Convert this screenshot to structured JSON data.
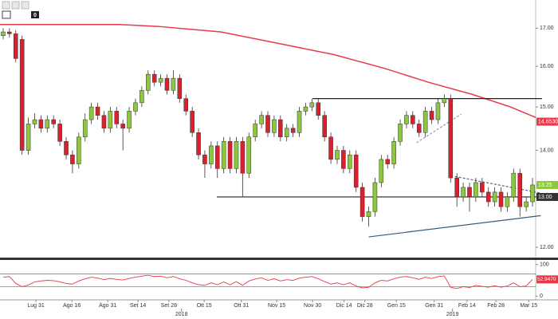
{
  "toolbar": {
    "badge": "0"
  },
  "chart_data": {
    "type": "candlestick",
    "log_scale": true,
    "ylim": [
      11.82,
      17.78
    ],
    "yticks": [
      {
        "value": 12,
        "label": "12.00"
      },
      {
        "value": 13,
        "label": "13.00"
      },
      {
        "value": 14,
        "label": "14.00"
      },
      {
        "value": 15,
        "label": "15.00"
      },
      {
        "value": 16,
        "label": "16.00"
      },
      {
        "value": 17,
        "label": "17.00"
      }
    ],
    "xlim": [
      0,
      85
    ],
    "xticks": [
      {
        "value": 5.7,
        "label": "Lug 31"
      },
      {
        "value": 11.4,
        "label": "Ago 16"
      },
      {
        "value": 17.1,
        "label": "Ago 31"
      },
      {
        "value": 21.9,
        "label": "Set 14"
      },
      {
        "value": 26.8,
        "label": "Set 28"
      },
      {
        "value": 32.4,
        "label": "Ott 15"
      },
      {
        "value": 38.3,
        "label": "Ott 31"
      },
      {
        "value": 43.9,
        "label": "Nov 15"
      },
      {
        "value": 49.6,
        "label": "Nov 30"
      },
      {
        "value": 54.6,
        "label": "Dic 14"
      },
      {
        "value": 57.9,
        "label": "Dic 28"
      },
      {
        "value": 62.9,
        "label": "Gen 15"
      },
      {
        "value": 68.9,
        "label": "Gen 31"
      },
      {
        "value": 74.1,
        "label": "Feb 14"
      },
      {
        "value": 78.7,
        "label": "Feb 28"
      },
      {
        "value": 83.9,
        "label": "Mar 15"
      }
    ],
    "year_labels": [
      {
        "value": 28.8,
        "label": "2018"
      },
      {
        "value": 71.8,
        "label": "2019"
      }
    ],
    "up_color": "#8dc63f",
    "down_color": "#d9202f",
    "open": [
      16.8,
      16.9,
      16.85,
      16.7,
      14.0,
      14.6,
      14.7,
      14.5,
      14.7,
      14.6,
      14.2,
      13.9,
      13.7,
      14.3,
      14.7,
      15.0,
      14.8,
      14.5,
      14.9,
      14.6,
      14.5,
      14.9,
      15.1,
      15.4,
      15.8,
      15.6,
      15.7,
      15.4,
      15.7,
      15.2,
      14.9,
      14.4,
      13.9,
      13.7,
      14.1,
      13.6,
      14.2,
      13.6,
      14.2,
      13.5,
      14.3,
      14.6,
      14.8,
      14.4,
      14.7,
      14.3,
      14.5,
      14.4,
      14.9,
      15.0,
      15.1,
      14.8,
      14.3,
      13.8,
      14.0,
      13.6,
      13.9,
      13.2,
      12.6,
      12.7,
      13.3,
      13.8,
      13.7,
      14.2,
      14.6,
      14.8,
      14.6,
      14.4,
      14.9,
      14.7,
      15.1,
      15.2,
      13.4,
      13.0,
      13.2,
      13.0,
      13.3,
      13.1,
      12.9,
      13.1,
      12.8,
      13.0,
      13.5,
      12.8,
      12.9
    ],
    "high": [
      17.0,
      17.0,
      16.95,
      16.8,
      14.75,
      14.85,
      14.8,
      14.8,
      14.8,
      14.7,
      14.3,
      14.0,
      14.4,
      14.85,
      15.1,
      15.1,
      14.9,
      15.0,
      15.0,
      14.7,
      15.0,
      15.2,
      15.5,
      15.9,
      15.9,
      15.8,
      15.8,
      15.9,
      15.8,
      15.3,
      15.0,
      14.5,
      14.0,
      14.2,
      14.2,
      14.3,
      14.3,
      14.3,
      14.3,
      14.4,
      14.7,
      14.9,
      14.9,
      14.8,
      14.8,
      14.6,
      14.6,
      15.0,
      15.1,
      15.2,
      15.2,
      14.9,
      14.4,
      14.1,
      14.1,
      14.0,
      14.0,
      13.3,
      12.8,
      13.4,
      13.9,
      13.9,
      14.3,
      14.7,
      14.9,
      14.9,
      14.7,
      15.0,
      15.0,
      15.2,
      15.3,
      15.3,
      13.5,
      13.3,
      13.3,
      13.4,
      13.4,
      13.2,
      13.2,
      13.2,
      13.1,
      13.6,
      13.6,
      13.0,
      13.4
    ],
    "low": [
      16.7,
      16.75,
      16.1,
      13.9,
      13.9,
      14.5,
      14.4,
      14.4,
      14.5,
      14.1,
      13.8,
      13.5,
      13.6,
      14.2,
      14.6,
      14.7,
      14.4,
      14.4,
      14.5,
      14.0,
      14.4,
      14.8,
      15.0,
      15.3,
      15.5,
      15.5,
      15.3,
      15.3,
      15.1,
      14.8,
      14.3,
      13.8,
      13.4,
      13.6,
      13.4,
      13.5,
      13.5,
      13.5,
      13.0,
      13.4,
      14.2,
      14.5,
      14.3,
      14.3,
      14.2,
      14.2,
      14.3,
      14.3,
      14.8,
      14.9,
      14.7,
      14.2,
      13.7,
      13.7,
      13.5,
      13.5,
      13.1,
      12.5,
      12.4,
      12.6,
      13.2,
      13.6,
      13.6,
      14.1,
      14.5,
      14.5,
      14.3,
      14.3,
      14.6,
      14.6,
      15.0,
      13.3,
      12.8,
      12.9,
      12.7,
      12.9,
      13.0,
      12.8,
      12.8,
      12.7,
      12.7,
      12.9,
      12.6,
      12.7,
      12.8
    ],
    "close": [
      16.9,
      16.85,
      16.2,
      14.0,
      14.6,
      14.7,
      14.5,
      14.7,
      14.6,
      14.2,
      13.9,
      13.7,
      14.3,
      14.7,
      15.0,
      14.8,
      14.5,
      14.9,
      14.6,
      14.5,
      14.9,
      15.1,
      15.4,
      15.8,
      15.6,
      15.7,
      15.4,
      15.7,
      15.2,
      14.9,
      14.4,
      13.9,
      13.7,
      14.1,
      13.6,
      14.2,
      13.6,
      14.2,
      13.5,
      14.3,
      14.6,
      14.8,
      14.4,
      14.7,
      14.3,
      14.5,
      14.4,
      14.9,
      15.0,
      15.1,
      14.8,
      14.3,
      13.8,
      14.0,
      13.6,
      13.9,
      13.2,
      12.6,
      12.7,
      13.3,
      13.8,
      13.7,
      14.2,
      14.6,
      14.8,
      14.6,
      14.4,
      14.9,
      14.7,
      15.1,
      15.2,
      13.4,
      13.0,
      13.2,
      13.0,
      13.3,
      13.1,
      12.9,
      13.1,
      12.8,
      13.0,
      13.5,
      12.8,
      12.9,
      13.25
    ],
    "moving_average": {
      "color": "#e8394a",
      "x": [
        0,
        19,
        25,
        35,
        44,
        53,
        61,
        68,
        75,
        81,
        85
      ],
      "y": [
        17.1,
        17.1,
        17.05,
        16.9,
        16.6,
        16.3,
        15.95,
        15.6,
        15.3,
        15.0,
        14.75
      ]
    },
    "lines": [
      {
        "color": "#222222",
        "dash": false,
        "x": [
          49.6,
          86
        ],
        "y": [
          15.2,
          15.2
        ]
      },
      {
        "color": "#222222",
        "dash": false,
        "x": [
          34.4,
          86
        ],
        "y": [
          13.0,
          13.0
        ]
      },
      {
        "color": "#3a5a78",
        "dash": false,
        "x": [
          58.5,
          85.8
        ],
        "y": [
          12.2,
          12.62
        ]
      },
      {
        "color": "#4a6a90",
        "dash": true,
        "x": [
          72.2,
          85.8
        ],
        "y": [
          13.43,
          13.08
        ]
      },
      {
        "color": "#999999",
        "dash": true,
        "x": [
          66.1,
          73.2
        ],
        "y": [
          14.17,
          14.83
        ]
      }
    ],
    "tags": [
      {
        "value": 14.653,
        "label": "14.6530",
        "color": "#e8394a"
      },
      {
        "value": 13.25,
        "label": "13.25",
        "color": "#8dc63f"
      },
      {
        "value": 13.0,
        "label": "13.00",
        "color": "#333333"
      }
    ],
    "oscillator": {
      "color": "#e8394a",
      "ylim": [
        -12,
        112
      ],
      "yticks": [
        0,
        100
      ],
      "levels": [
        {
          "value": 70,
          "color": "#e8394a"
        },
        {
          "value": 30,
          "color": "#3cb043"
        }
      ],
      "values": [
        60,
        62,
        40,
        30,
        35,
        45,
        48,
        50,
        49,
        45,
        40,
        38,
        48,
        55,
        60,
        57,
        52,
        56,
        53,
        51,
        56,
        60,
        63,
        66,
        62,
        63,
        58,
        62,
        55,
        50,
        42,
        36,
        34,
        42,
        36,
        45,
        36,
        46,
        34,
        48,
        54,
        58,
        50,
        55,
        48,
        52,
        50,
        57,
        60,
        62,
        55,
        46,
        38,
        42,
        36,
        42,
        32,
        26,
        28,
        42,
        50,
        48,
        55,
        60,
        62,
        58,
        53,
        60,
        56,
        62,
        64,
        28,
        24,
        30,
        27,
        34,
        31,
        28,
        33,
        28,
        32,
        42,
        30,
        32,
        53
      ],
      "tag": {
        "value": 52.947,
        "label": "52.9470",
        "color": "#e8394a"
      }
    }
  }
}
